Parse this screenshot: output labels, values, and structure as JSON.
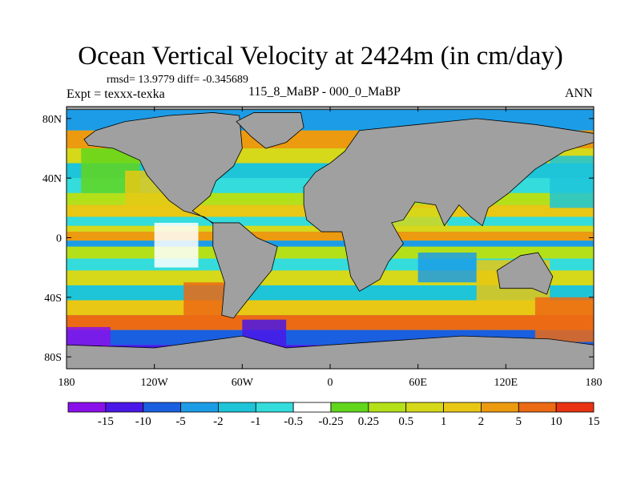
{
  "title": "Ocean Vertical Velocity at 2424m (in cm/day)",
  "stats_text": "rmsd= 13.9779 diff= -0.345689",
  "expt_text": "Expt = texxx-texka",
  "subtitle": "115_8_MaBP - 000_0_MaBP",
  "season": "ANN",
  "map": {
    "lat_labels": [
      "80N",
      "40N",
      "0",
      "40S",
      "80S"
    ],
    "lat_values": [
      80,
      40,
      0,
      -40,
      -80
    ],
    "lon_labels": [
      "180",
      "120W",
      "60W",
      "0",
      "60E",
      "120E",
      "180"
    ],
    "lon_values": [
      -180,
      -120,
      -60,
      0,
      60,
      120,
      180
    ],
    "land_color": "#a0a0a0"
  },
  "colorbar": {
    "labels": [
      "-15",
      "-10",
      "-5",
      "-2",
      "-1",
      "-0.5",
      "-0.25",
      "0.25",
      "0.5",
      "1",
      "2",
      "5",
      "10",
      "15"
    ],
    "colors": [
      "#8a10ea",
      "#4a18e6",
      "#1a5fe0",
      "#1c9ce6",
      "#1ec4d8",
      "#34dcdc",
      "#ffffff",
      "#62d61c",
      "#b4e01a",
      "#d6d81a",
      "#e8c814",
      "#ec9a10",
      "#ec6a14",
      "#e83212"
    ]
  }
}
